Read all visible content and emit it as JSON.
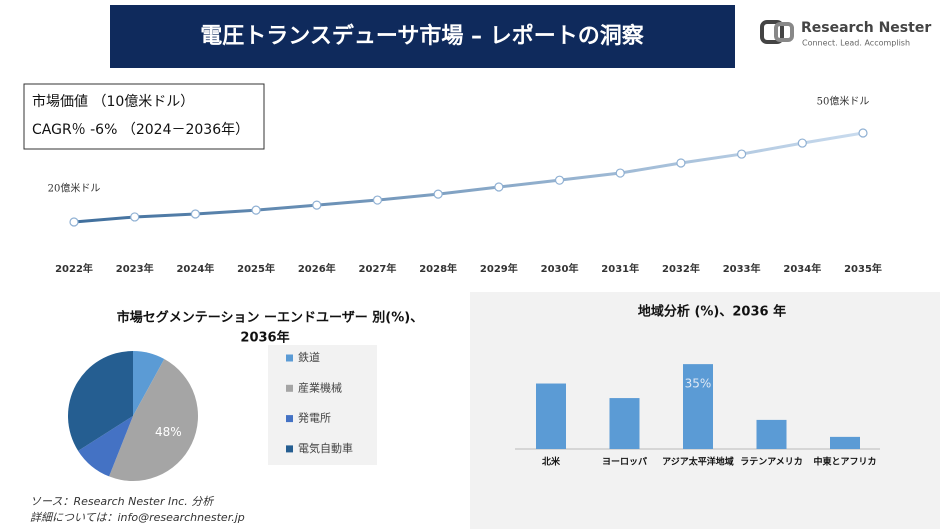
{
  "header": {
    "title": "電圧トランスデューサ市場 – レポートの洞察"
  },
  "logo": {
    "name": "Research Nester",
    "tagline": "Connect. Lead. Accomplish"
  },
  "chart_data": [
    {
      "type": "line",
      "annotations": [
        "市場価値 （10億米ドル）",
        "CAGR％ -6% （2024－2036年）"
      ],
      "categories": [
        "2022年",
        "2023年",
        "2024年",
        "2025年",
        "2026年",
        "2027年",
        "2028年",
        "2029年",
        "2030年",
        "2031年",
        "2032年",
        "2033年",
        "2034年",
        "2035年"
      ],
      "values": [
        20,
        21.7,
        22.7,
        24,
        25.7,
        27.4,
        29.4,
        31.8,
        34.1,
        36.5,
        39.9,
        42.9,
        46.6,
        50
      ],
      "value_labels": [
        "20億米ドル",
        null,
        null,
        null,
        null,
        null,
        null,
        null,
        null,
        null,
        null,
        null,
        null,
        "50億米ドル"
      ],
      "colors": [
        "#3f6e9c",
        "#c9dbee"
      ],
      "ylim": [
        20,
        50
      ]
    },
    {
      "type": "pie",
      "title": "市場セグメンテーション ーエンドユーザー 別(%)、2036年",
      "categories": [
        "鉄道",
        "産業機械",
        "発電所",
        "電気自動車"
      ],
      "values": [
        8,
        48,
        10,
        34
      ],
      "value_labels": [
        null,
        "48%",
        null,
        null
      ],
      "colors": [
        "#5b9bd5",
        "#a5a5a5",
        "#4472c4",
        "#255e91"
      ]
    },
    {
      "type": "bar",
      "title": "地域分析 (%)、2036 年",
      "categories": [
        "北米",
        "ヨーロッパ",
        "アジア太平洋地域",
        "ラテンアメリカ",
        "中東とアフリカ"
      ],
      "values": [
        27,
        21,
        35,
        12,
        5
      ],
      "value_labels": [
        null,
        null,
        "35%",
        null,
        null
      ],
      "color": "#5b9bd5",
      "ylim": [
        0,
        40
      ]
    }
  ],
  "footer": {
    "source": "ソース：Research Nester Inc. 分析",
    "contact": "詳細については：info@researchnester.jp"
  }
}
